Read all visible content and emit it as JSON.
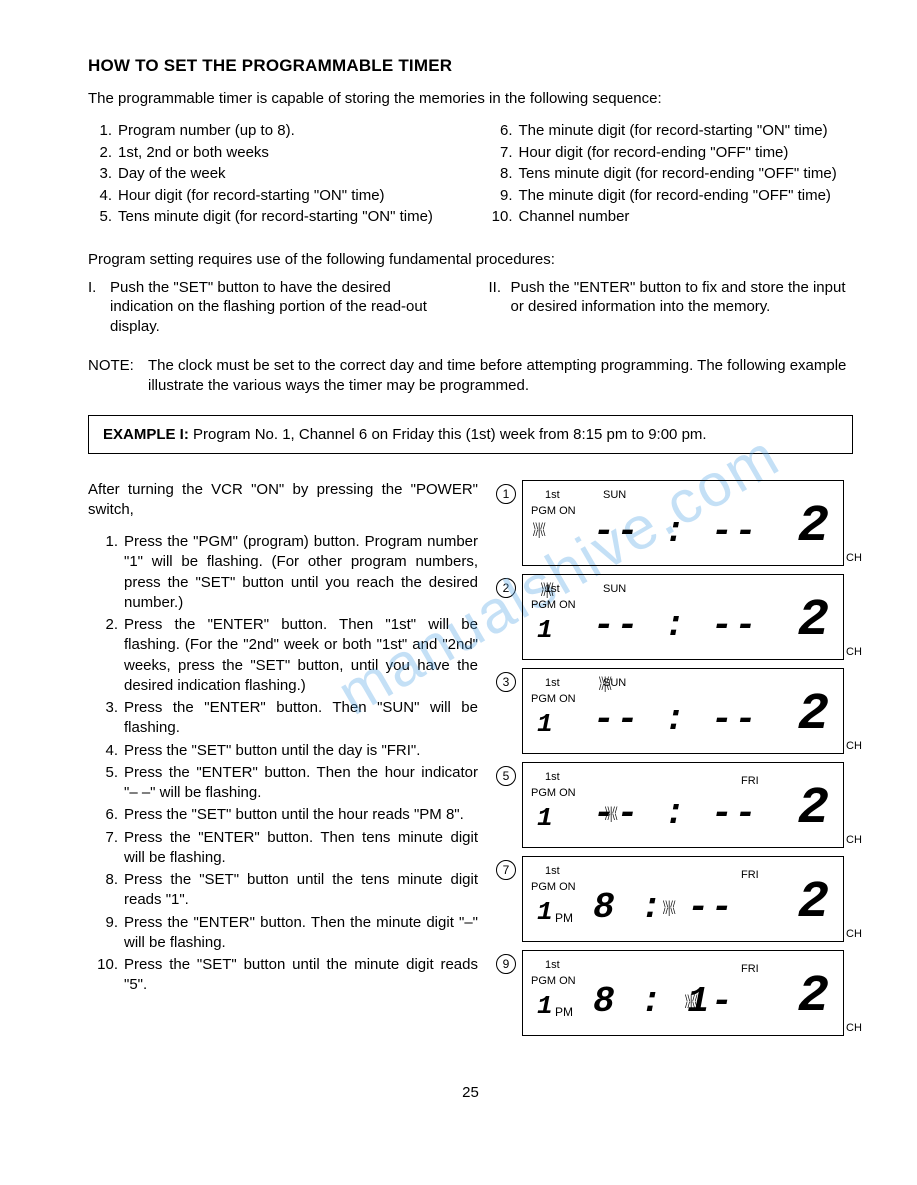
{
  "title": "HOW TO SET THE PROGRAMMABLE TIMER",
  "intro": "The programmable timer is capable of storing the memories in the following sequence:",
  "seq_left": [
    "Program number (up to 8).",
    "1st, 2nd or both weeks",
    "Day of the week",
    "Hour digit (for record-starting \"ON\" time)",
    "Tens minute digit (for record-starting \"ON\" time)"
  ],
  "seq_right": [
    "The minute digit (for record-starting \"ON\" time)",
    "Hour digit (for record-ending \"OFF\" time)",
    "Tens minute digit (for record-ending \"OFF\" time)",
    "The minute digit (for record-ending \"OFF\" time)",
    "Channel number"
  ],
  "procedures_intro": "Program setting requires use of the following fundamental procedures:",
  "proc_I": "Push the \"SET\" button to have the desired indication on the flashing portion of the read-out display.",
  "proc_II": "Push the \"ENTER\" button to fix and store the input or desired information into the memory.",
  "note_label": "NOTE:",
  "note_text": "The clock must be set to the correct day and time before attempting programming. The following example illustrate the various ways the timer may be programmed.",
  "example_label": "EXAMPLE I:",
  "example_text": "Program No. 1, Channel 6 on Friday this (1st) week from 8:15 pm to 9:00 pm.",
  "after_turning": "After turning the VCR \"ON\" by pressing the \"POWER\" switch,",
  "steps": [
    "Press the \"PGM\" (program) button. Program number \"1\" will be flashing. (For other program numbers, press the \"SET\" button until you reach the desired number.)",
    "Press the \"ENTER\" button. Then \"1st\" will be flashing. (For the \"2nd\" week or both \"1st\" and \"2nd\" weeks, press the \"SET\" button, until you have the desired indication flashing.)",
    "Press the \"ENTER\" button. Then \"SUN\" will be flashing.",
    "Press the \"SET\" button until the day is \"FRI\".",
    "Press the \"ENTER\" button. Then the hour indicator \"– –\" will be flashing.",
    "Press the \"SET\" button until the hour reads \"PM 8\".",
    "Press the \"ENTER\" button. Then tens minute digit will be flashing.",
    "Press the \"SET\" button until the tens minute digit reads \"1\".",
    "Press the \"ENTER\" button. Then the minute digit \"–\" will be flashing.",
    "Press the \"SET\" button until the minute digit reads \"5\"."
  ],
  "lcd": [
    {
      "n": "1",
      "week": "1st",
      "day": "SUN",
      "dayR": "",
      "pgm": "PGM ON",
      "pgmno": "",
      "pm": "",
      "time": "-- : --",
      "ch": "2",
      "flash_pgm": true
    },
    {
      "n": "2",
      "week": "1st",
      "day": "SUN",
      "dayR": "",
      "pgm": "PGM ON",
      "pgmno": "1",
      "pm": "",
      "time": "-- : --",
      "ch": "2",
      "flash_week": true
    },
    {
      "n": "3",
      "week": "1st",
      "day": "SUN",
      "dayR": "",
      "pgm": "PGM ON",
      "pgmno": "1",
      "pm": "",
      "time": "-- : --",
      "ch": "2",
      "flash_day": true
    },
    {
      "n": "5",
      "week": "1st",
      "day": "",
      "dayR": "FRI",
      "pgm": "PGM ON",
      "pgmno": "1",
      "pm": "",
      "time": "-- : --",
      "ch": "2",
      "flash_time_hr": true
    },
    {
      "n": "7",
      "week": "1st",
      "day": "",
      "dayR": "FRI",
      "pgm": "PGM ON",
      "pgmno": "1",
      "pm": "PM",
      "time": "8 : --",
      "ch": "2",
      "flash_time_tm": true
    },
    {
      "n": "9",
      "week": "1st",
      "day": "",
      "dayR": "FRI",
      "pgm": "PGM ON",
      "pgmno": "1",
      "pm": "PM",
      "time": "8 : 1-",
      "ch": "2",
      "flash_time_um": true
    }
  ],
  "ch_label": "CH",
  "page_number": "25",
  "watermark": "manualshive.com"
}
